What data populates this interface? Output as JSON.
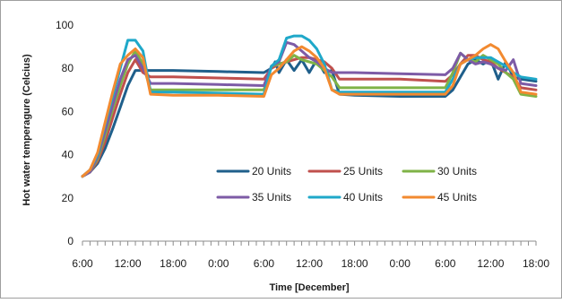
{
  "chart_data": {
    "type": "line",
    "xlabel": "Time [December]",
    "ylabel": "Hot water temperagure (Celcius)",
    "ylim": [
      0,
      100
    ],
    "yticks": [
      0,
      20,
      40,
      60,
      80,
      100
    ],
    "x_unit": "hours from start",
    "xlim": [
      0,
      60
    ],
    "xticks": [
      {
        "x": 0,
        "label": "6:00"
      },
      {
        "x": 6,
        "label": "12:00"
      },
      {
        "x": 12,
        "label": "18:00"
      },
      {
        "x": 18,
        "label": "0:00"
      },
      {
        "x": 24,
        "label": "6:00"
      },
      {
        "x": 30,
        "label": "12:00"
      },
      {
        "x": 36,
        "label": "18:00"
      },
      {
        "x": 42,
        "label": "0:00"
      },
      {
        "x": 48,
        "label": "6:00"
      },
      {
        "x": 54,
        "label": "12:00"
      },
      {
        "x": 60,
        "label": "18:00"
      }
    ],
    "minor_tick_step": 1,
    "grid": false,
    "legend_position": "lower-right inside plot, 3 columns",
    "series": [
      {
        "name": "20 Units",
        "color": "#1f5f8b",
        "points": [
          [
            0,
            30
          ],
          [
            1,
            32
          ],
          [
            2,
            36
          ],
          [
            3,
            43
          ],
          [
            4,
            52
          ],
          [
            5,
            62
          ],
          [
            6,
            72
          ],
          [
            7,
            79
          ],
          [
            8,
            79
          ],
          [
            12,
            79
          ],
          [
            18,
            78.5
          ],
          [
            24,
            78
          ],
          [
            25,
            80
          ],
          [
            25.5,
            83
          ],
          [
            26,
            78
          ],
          [
            27,
            84
          ],
          [
            28,
            79
          ],
          [
            29,
            84
          ],
          [
            30,
            78
          ],
          [
            31,
            84
          ],
          [
            32,
            78
          ],
          [
            33,
            79
          ],
          [
            34,
            68
          ],
          [
            36,
            67.5
          ],
          [
            42,
            67
          ],
          [
            48,
            67
          ],
          [
            49,
            70
          ],
          [
            50,
            76
          ],
          [
            51,
            82
          ],
          [
            52,
            84
          ],
          [
            53,
            82
          ],
          [
            54,
            84
          ],
          [
            55,
            75
          ],
          [
            56,
            83
          ],
          [
            57,
            76
          ],
          [
            58,
            75
          ],
          [
            60,
            74
          ]
        ]
      },
      {
        "name": "25 Units",
        "color": "#c0504d",
        "points": [
          [
            0,
            30
          ],
          [
            1,
            32
          ],
          [
            2,
            37
          ],
          [
            3,
            46
          ],
          [
            4,
            57
          ],
          [
            5,
            68
          ],
          [
            6,
            78
          ],
          [
            7,
            84
          ],
          [
            8,
            78
          ],
          [
            9,
            76
          ],
          [
            12,
            76
          ],
          [
            18,
            75.5
          ],
          [
            24,
            75
          ],
          [
            25,
            80
          ],
          [
            26,
            82
          ],
          [
            27,
            83
          ],
          [
            28,
            84
          ],
          [
            29,
            85
          ],
          [
            30,
            85
          ],
          [
            31,
            84
          ],
          [
            32,
            83
          ],
          [
            33,
            80
          ],
          [
            34,
            75
          ],
          [
            36,
            75
          ],
          [
            42,
            75
          ],
          [
            48,
            74
          ],
          [
            49,
            77
          ],
          [
            50,
            82
          ],
          [
            51,
            86
          ],
          [
            52,
            86
          ],
          [
            53,
            84
          ],
          [
            54,
            83
          ],
          [
            55,
            80
          ],
          [
            56,
            78
          ],
          [
            57,
            76
          ],
          [
            58,
            71
          ],
          [
            60,
            70
          ]
        ]
      },
      {
        "name": "30 Units",
        "color": "#7fb347",
        "points": [
          [
            0,
            30
          ],
          [
            1,
            32
          ],
          [
            2,
            38
          ],
          [
            3,
            49
          ],
          [
            4,
            61
          ],
          [
            5,
            72
          ],
          [
            6,
            82
          ],
          [
            7,
            88
          ],
          [
            8,
            82
          ],
          [
            9,
            70
          ],
          [
            12,
            70
          ],
          [
            18,
            70
          ],
          [
            24,
            70
          ],
          [
            25,
            81
          ],
          [
            26,
            82
          ],
          [
            27,
            83
          ],
          [
            28,
            86
          ],
          [
            29,
            84
          ],
          [
            30,
            83
          ],
          [
            31,
            82
          ],
          [
            32,
            79
          ],
          [
            33,
            76
          ],
          [
            34,
            71
          ],
          [
            36,
            71
          ],
          [
            42,
            71
          ],
          [
            48,
            71
          ],
          [
            49,
            78
          ],
          [
            50,
            87
          ],
          [
            51,
            84
          ],
          [
            52,
            83
          ],
          [
            53,
            86
          ],
          [
            54,
            84
          ],
          [
            55,
            82
          ],
          [
            56,
            78
          ],
          [
            57,
            75
          ],
          [
            58,
            68
          ],
          [
            60,
            67
          ]
        ]
      },
      {
        "name": "35 Units",
        "color": "#7d5ba6",
        "points": [
          [
            0,
            30
          ],
          [
            1,
            32
          ],
          [
            2,
            39
          ],
          [
            3,
            51
          ],
          [
            4,
            63
          ],
          [
            5,
            75
          ],
          [
            6,
            84
          ],
          [
            7,
            86
          ],
          [
            8,
            80
          ],
          [
            9,
            73
          ],
          [
            12,
            73
          ],
          [
            18,
            72.5
          ],
          [
            24,
            72
          ],
          [
            25,
            81
          ],
          [
            26,
            83
          ],
          [
            27,
            92
          ],
          [
            28,
            91
          ],
          [
            29,
            88
          ],
          [
            30,
            85
          ],
          [
            31,
            83
          ],
          [
            32,
            80
          ],
          [
            33,
            78
          ],
          [
            34,
            78
          ],
          [
            36,
            78
          ],
          [
            42,
            77.5
          ],
          [
            48,
            77
          ],
          [
            49,
            80
          ],
          [
            50,
            87
          ],
          [
            51,
            84
          ],
          [
            52,
            82
          ],
          [
            53,
            83
          ],
          [
            54,
            82
          ],
          [
            55,
            80
          ],
          [
            56,
            79
          ],
          [
            57,
            84
          ],
          [
            58,
            73
          ],
          [
            60,
            72
          ]
        ]
      },
      {
        "name": "40 Units",
        "color": "#1fa8c9",
        "points": [
          [
            0,
            30
          ],
          [
            1,
            33
          ],
          [
            2,
            40
          ],
          [
            3,
            54
          ],
          [
            4,
            67
          ],
          [
            5,
            80
          ],
          [
            6,
            93
          ],
          [
            7,
            93
          ],
          [
            8,
            88
          ],
          [
            9,
            69
          ],
          [
            12,
            69
          ],
          [
            18,
            68.5
          ],
          [
            24,
            68
          ],
          [
            25,
            81
          ],
          [
            26,
            84
          ],
          [
            27,
            94
          ],
          [
            28,
            95
          ],
          [
            29,
            95
          ],
          [
            30,
            93
          ],
          [
            31,
            89
          ],
          [
            32,
            82
          ],
          [
            33,
            70
          ],
          [
            34,
            69
          ],
          [
            36,
            69
          ],
          [
            42,
            69
          ],
          [
            48,
            69
          ],
          [
            49,
            75
          ],
          [
            50,
            82
          ],
          [
            51,
            84
          ],
          [
            52,
            85
          ],
          [
            53,
            85
          ],
          [
            54,
            85
          ],
          [
            55,
            83
          ],
          [
            56,
            81
          ],
          [
            57,
            78
          ],
          [
            58,
            76
          ],
          [
            60,
            75
          ]
        ]
      },
      {
        "name": "45 Units",
        "color": "#f28a30",
        "points": [
          [
            0,
            30
          ],
          [
            1,
            33
          ],
          [
            2,
            41
          ],
          [
            3,
            55
          ],
          [
            4,
            69
          ],
          [
            5,
            82
          ],
          [
            6,
            86
          ],
          [
            7,
            89
          ],
          [
            8,
            85
          ],
          [
            9,
            68
          ],
          [
            12,
            67.5
          ],
          [
            18,
            67.5
          ],
          [
            24,
            67
          ],
          [
            25,
            77
          ],
          [
            26,
            80
          ],
          [
            27,
            84
          ],
          [
            28,
            88
          ],
          [
            29,
            90
          ],
          [
            30,
            88
          ],
          [
            31,
            85
          ],
          [
            32,
            80
          ],
          [
            33,
            70
          ],
          [
            34,
            68
          ],
          [
            36,
            68
          ],
          [
            42,
            68
          ],
          [
            48,
            68
          ],
          [
            49,
            72
          ],
          [
            50,
            82
          ],
          [
            51,
            84
          ],
          [
            52,
            86
          ],
          [
            53,
            89
          ],
          [
            54,
            91
          ],
          [
            55,
            89
          ],
          [
            56,
            83
          ],
          [
            57,
            78
          ],
          [
            58,
            69
          ],
          [
            60,
            68
          ]
        ]
      }
    ]
  }
}
